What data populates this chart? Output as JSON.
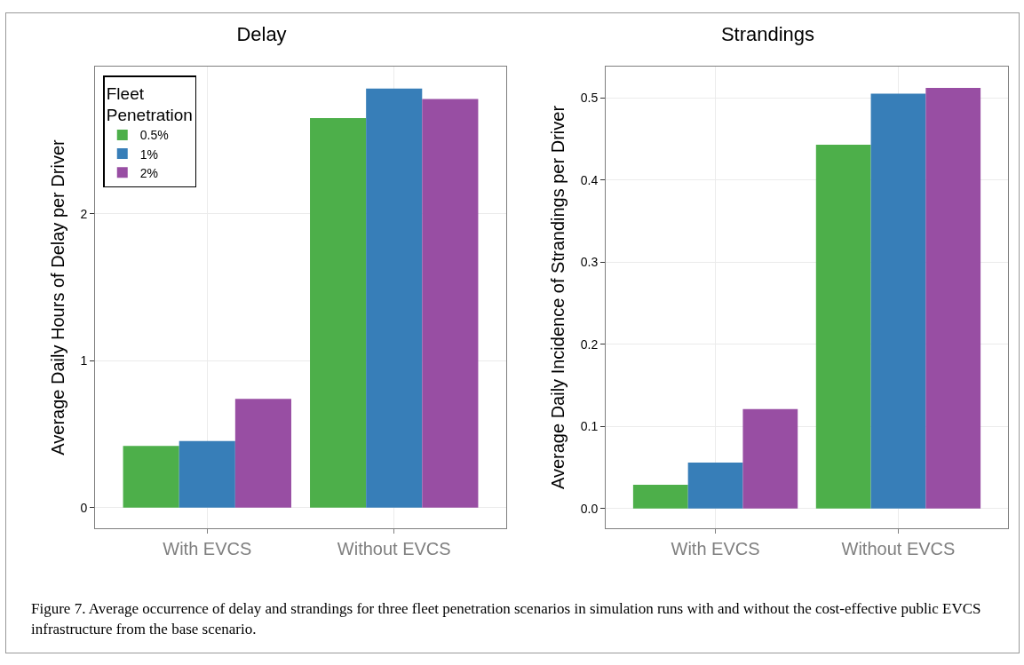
{
  "chart_data": [
    {
      "type": "bar",
      "title": "Delay",
      "ylabel": "Average Daily Hours of Delay per Driver",
      "categories": [
        "With EVCS",
        "Without EVCS"
      ],
      "series": [
        {
          "name": "0.5%",
          "color": "#4daf4a",
          "values": [
            0.42,
            2.65
          ]
        },
        {
          "name": "1%",
          "color": "#377eb8",
          "values": [
            0.454,
            2.85
          ]
        },
        {
          "name": "2%",
          "color": "#984ea3",
          "values": [
            0.74,
            2.78
          ]
        }
      ],
      "ylim": [
        -0.14,
        3.0
      ],
      "yticks": [
        0,
        1,
        2
      ],
      "grid": true,
      "legend": "top left",
      "legend_title": "Fleet Penetration",
      "annotations": [
        "Figure 7. Average occurrence of delay and strandings for three fleet penetration scenarios in simulation runs with and without the cost-effective public EVCS infrastructure from the base scenario."
      ]
    },
    {
      "type": "bar",
      "title": "Strandings",
      "ylabel": "Average Daily Incidence of Strandings per Driver",
      "categories": [
        "With EVCS",
        "Without EVCS"
      ],
      "series": [
        {
          "color": "#4daf4a",
          "values": [
            0.029,
            0.443
          ]
        },
        {
          "color": "#377eb8",
          "values": [
            0.056,
            0.505
          ]
        },
        {
          "color": "#984ea3",
          "values": [
            0.121,
            0.512
          ]
        }
      ],
      "ylim": [
        -0.024,
        0.538
      ],
      "yticks": [
        {
          "value": 0,
          "label": "0.0"
        },
        0.1,
        0.2,
        0.3,
        0.4,
        0.5
      ],
      "grid": true,
      "legend": false
    }
  ]
}
